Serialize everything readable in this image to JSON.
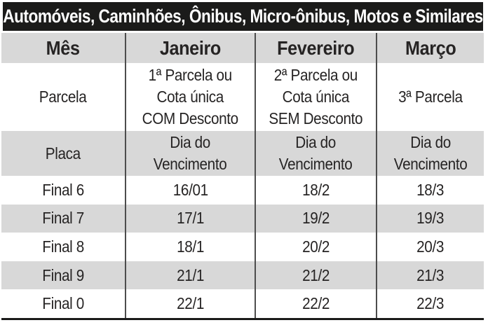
{
  "title": "Automóveis, Caminhões, Ônibus, Micro-ônibus, Motos e Similares",
  "table": {
    "columns": [
      "Mês",
      "Janeiro",
      "Fevereiro",
      "Março"
    ],
    "rows": [
      {
        "label": "Parcela",
        "cells": [
          "1ª Parcela ou\nCota única\nCOM Desconto",
          "2ª Parcela ou\nCota única\nSEM Desconto",
          "3ª Parcela"
        ]
      },
      {
        "label": "Placa",
        "cells": [
          "Dia do\nVencimento",
          "Dia do\nVencimento",
          "Dia do\nVencimento"
        ]
      },
      {
        "label": "Final 6",
        "cells": [
          "16/01",
          "18/2",
          "18/3"
        ]
      },
      {
        "label": "Final 7",
        "cells": [
          "17/1",
          "19/2",
          "19/3"
        ]
      },
      {
        "label": "Final 8",
        "cells": [
          "18/1",
          "20/2",
          "20/3"
        ]
      },
      {
        "label": "Final 9",
        "cells": [
          "21/1",
          "21/2",
          "21/3"
        ]
      },
      {
        "label": "Final 0",
        "cells": [
          "22/1",
          "22/2",
          "22/3"
        ]
      }
    ]
  },
  "colors": {
    "title_bg": "#1b1b1a",
    "shaded_row": "#d8d8d8",
    "divider": "#4d4d4d",
    "text": "#262424"
  }
}
